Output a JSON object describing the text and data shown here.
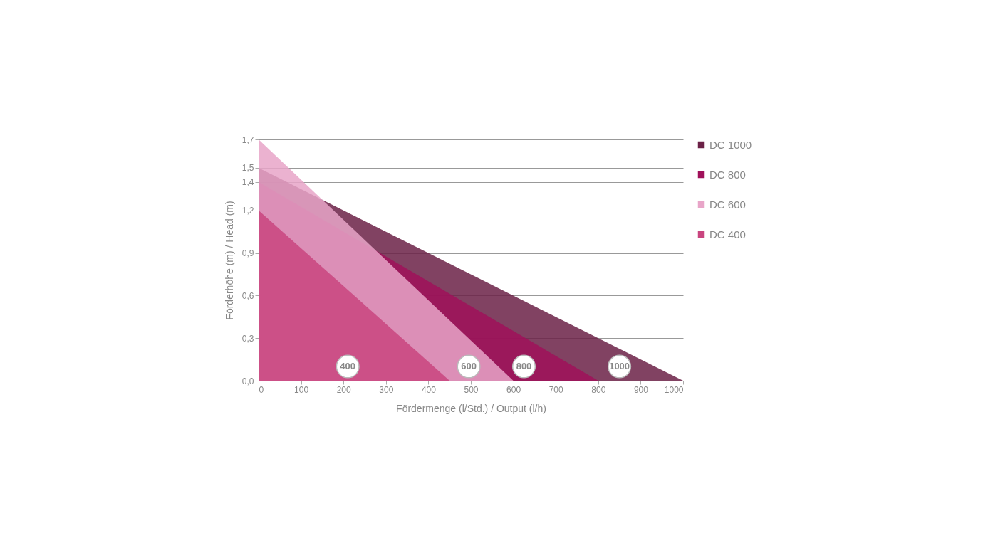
{
  "chart_data": {
    "type": "area",
    "xlabel": "Fördermenge (l/Std.) / Output (l/h)",
    "ylabel": "Förderhöhe (m) / Head (m)",
    "series": [
      {
        "name": "DC 1000",
        "color": "#6b2146",
        "x": [
          0,
          1000
        ],
        "values": [
          1.5,
          0
        ]
      },
      {
        "name": "DC 800",
        "color": "#a0105a",
        "x": [
          0,
          800
        ],
        "values": [
          1.4,
          0
        ]
      },
      {
        "name": "DC 600",
        "color": "#e8a5c8",
        "x": [
          0,
          600
        ],
        "values": [
          1.7,
          0
        ]
      },
      {
        "name": "DC 400",
        "color": "#c9457f",
        "x": [
          0,
          450
        ],
        "values": [
          1.2,
          0
        ]
      }
    ],
    "xlim": [
      0,
      1000
    ],
    "xticks": [
      0,
      100,
      200,
      300,
      400,
      500,
      600,
      700,
      800,
      900,
      1000
    ],
    "ylim": [
      0,
      1.7
    ],
    "yticks": [
      {
        "value": 0,
        "label": "0,0"
      },
      {
        "value": 0.3,
        "label": "0,3"
      },
      {
        "value": 0.6,
        "label": "0,6"
      },
      {
        "value": 0.9,
        "label": "0,9"
      },
      {
        "value": 1.2,
        "label": "1,2"
      },
      {
        "value": 1.4,
        "label": "1,4"
      },
      {
        "value": 1.5,
        "label": "1,5"
      },
      {
        "value": 1.7,
        "label": "1,7"
      }
    ],
    "annotations": [
      {
        "text": "400",
        "x": 210,
        "y": 0.1
      },
      {
        "text": "600",
        "x": 495,
        "y": 0.1
      },
      {
        "text": "800",
        "x": 625,
        "y": 0.1
      },
      {
        "text": "1000",
        "x": 850,
        "y": 0.1
      }
    ],
    "grid": "y",
    "legend": "top right"
  }
}
